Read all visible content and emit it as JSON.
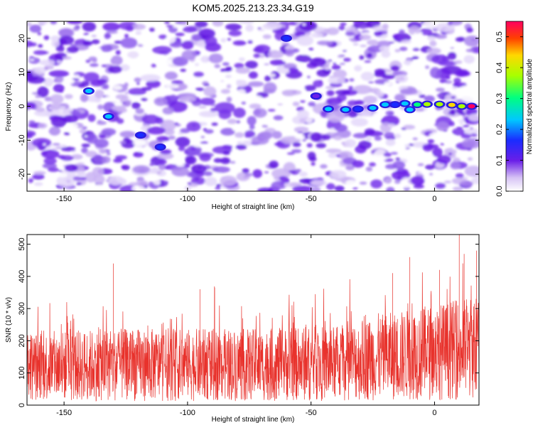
{
  "title": "KOM5.2025.213.23.34.G19",
  "chart_data": [
    {
      "type": "heatmap",
      "title": "KOM5.2025.213.23.34.G19",
      "xlabel": "Height of straight line (km)",
      "ylabel": "Frequency (Hz)",
      "xlim": [
        -165,
        18
      ],
      "ylim": [
        -25,
        25
      ],
      "x_ticks": [
        -150,
        -100,
        -50,
        0
      ],
      "y_ticks": [
        -20,
        -10,
        0,
        10,
        20
      ],
      "x_tick_labels": [
        "-150",
        "-100",
        "-50",
        "0"
      ],
      "y_tick_labels": [
        "-20",
        "-10",
        "0",
        "10",
        "20"
      ],
      "colorbar": {
        "label": "Normalized spectral amplitude",
        "range": [
          0,
          0.55
        ],
        "ticks": [
          0.0,
          0.1,
          0.2,
          0.3,
          0.4,
          0.5
        ],
        "tick_labels": [
          "0.0",
          "0.1",
          "0.2",
          "0.3",
          "0.4",
          "0.5"
        ]
      },
      "signal_track": [
        {
          "x": -140,
          "y": 4.5,
          "v": 0.22
        },
        {
          "x": -132,
          "y": -3,
          "v": 0.2
        },
        {
          "x": -119,
          "y": -8.5,
          "v": 0.18
        },
        {
          "x": -111,
          "y": -12,
          "v": 0.17
        },
        {
          "x": -60,
          "y": 20,
          "v": 0.16
        },
        {
          "x": -48,
          "y": 3,
          "v": 0.14
        },
        {
          "x": -43,
          "y": -0.8,
          "v": 0.2
        },
        {
          "x": -36,
          "y": -1,
          "v": 0.22
        },
        {
          "x": -31,
          "y": -0.8,
          "v": 0.18
        },
        {
          "x": -25,
          "y": -0.5,
          "v": 0.2
        },
        {
          "x": -20,
          "y": 0.5,
          "v": 0.2
        },
        {
          "x": -16,
          "y": 0.5,
          "v": 0.18
        },
        {
          "x": -12,
          "y": 0.8,
          "v": 0.2
        },
        {
          "x": -10,
          "y": -1,
          "v": 0.22
        },
        {
          "x": -7,
          "y": 0.5,
          "v": 0.3
        },
        {
          "x": -3,
          "y": 0.6,
          "v": 0.33
        },
        {
          "x": 2,
          "y": 0.6,
          "v": 0.36
        },
        {
          "x": 7,
          "y": 0.4,
          "v": 0.4
        },
        {
          "x": 11,
          "y": 0.0,
          "v": 0.33
        },
        {
          "x": 15,
          "y": 0.0,
          "v": 0.55
        }
      ]
    },
    {
      "type": "line",
      "xlabel": "Height of straight line (km)",
      "ylabel": "SNR (10 * v/v)",
      "xlim": [
        -165,
        18
      ],
      "ylim": [
        0,
        530
      ],
      "x_ticks": [
        -150,
        -100,
        -50,
        0
      ],
      "y_ticks": [
        0,
        100,
        200,
        300,
        400,
        500
      ],
      "x_tick_labels": [
        "-150",
        "-100",
        "-50",
        "0"
      ],
      "y_tick_labels": [
        "0",
        "100",
        "200",
        "300",
        "400",
        "500"
      ],
      "series": [
        {
          "color": "#e8322c",
          "baseline": [
            {
              "x": -165,
              "y": 120
            },
            {
              "x": -130,
              "y": 125
            },
            {
              "x": -100,
              "y": 125
            },
            {
              "x": -70,
              "y": 125
            },
            {
              "x": -40,
              "y": 130
            },
            {
              "x": -20,
              "y": 150
            },
            {
              "x": 0,
              "y": 165
            },
            {
              "x": 18,
              "y": 180
            }
          ],
          "peaks": [
            {
              "x": -130,
              "y": 440
            },
            {
              "x": -95,
              "y": 360
            },
            {
              "x": -89,
              "y": 365
            },
            {
              "x": -10,
              "y": 460
            },
            {
              "x": -17,
              "y": 410
            },
            {
              "x": 2,
              "y": 420
            },
            {
              "x": 10,
              "y": 530
            },
            {
              "x": 12,
              "y": 470
            },
            {
              "x": 17,
              "y": 480
            }
          ]
        }
      ]
    }
  ],
  "colors": {
    "snr_line": "#e8322c",
    "background": "#ffffff"
  }
}
